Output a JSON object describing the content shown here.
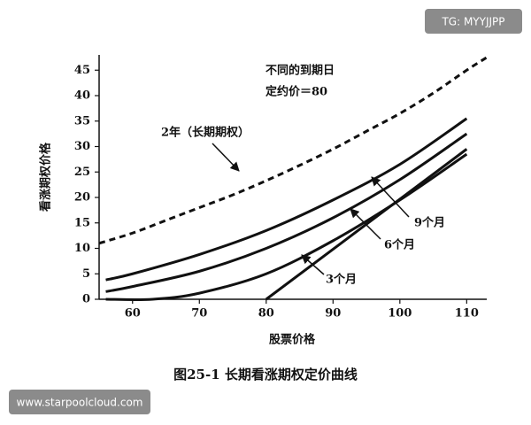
{
  "chart_data": {
    "type": "line",
    "title": "图25-1  长期看涨期权定价曲线",
    "xlabel": "股票价格",
    "ylabel": "看涨期权价格",
    "xlim": [
      55,
      113
    ],
    "ylim": [
      0,
      48
    ],
    "xticks": [
      60,
      70,
      80,
      90,
      100,
      110
    ],
    "yticks": [
      0,
      5,
      10,
      15,
      20,
      25,
      30,
      35,
      40,
      45
    ],
    "color": "#111111",
    "series": [
      {
        "name": "2年（长期期权）",
        "dashed": true,
        "x": [
          55,
          60,
          65,
          70,
          75,
          80,
          85,
          90,
          95,
          100,
          105,
          110,
          113
        ],
        "values": [
          11,
          13,
          15.5,
          18,
          20.5,
          23.3,
          26.3,
          29.5,
          33,
          36.5,
          40.5,
          45,
          47.5
        ]
      },
      {
        "name": "9个月",
        "x": [
          56,
          60,
          70,
          80,
          90,
          100,
          110
        ],
        "values": [
          3.8,
          5,
          8.8,
          13.5,
          19.5,
          26.5,
          35.5
        ]
      },
      {
        "name": "6个月",
        "x": [
          56,
          60,
          70,
          80,
          90,
          100,
          110
        ],
        "values": [
          1.5,
          2.5,
          5.5,
          10,
          16,
          23.5,
          32.5
        ]
      },
      {
        "name": "3个月",
        "x": [
          56,
          63,
          70,
          80,
          90,
          100,
          110
        ],
        "values": [
          0,
          0,
          1.2,
          5,
          11.5,
          19.5,
          28.5
        ]
      },
      {
        "x": [
          80,
          110
        ],
        "values": [
          0,
          29.5
        ]
      }
    ],
    "annotations": [
      "不同的到期日",
      "定约价＝80"
    ],
    "watermarks": [
      "TG: MYYJJPP",
      "www.starpoolcloud.com"
    ]
  }
}
